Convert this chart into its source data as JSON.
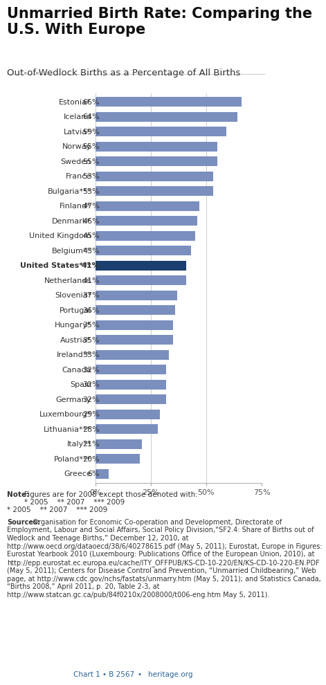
{
  "title": "Unmarried Birth Rate: Comparing the\nU.S. With Europe",
  "subtitle": "Out-of-Wedlock Births as a Percentage of All Births",
  "categories": [
    "Estonia*",
    "Iceland",
    "Latvia*",
    "Norway",
    "Sweden",
    "France",
    "Bulgaria***",
    "Finland*",
    "Denmark*",
    "United Kingdom",
    "Belgium**",
    "United States***",
    "Netherlands",
    "Slovenia*",
    "Portugal",
    "Hungary*",
    "Austria*",
    "Ireland**",
    "Canada",
    "Spain",
    "Germany",
    "Luxembourg*",
    "Lithuania***",
    "Italy**",
    "Poland***",
    "Greece"
  ],
  "values": [
    66,
    64,
    59,
    55,
    55,
    53,
    53,
    47,
    46,
    45,
    43,
    41,
    41,
    37,
    36,
    35,
    35,
    33,
    32,
    32,
    32,
    29,
    28,
    21,
    20,
    6
  ],
  "bar_color_default": "#7b8fbe",
  "bar_color_us": "#1b3f6e",
  "us_index": 11,
  "xlim": [
    0,
    75
  ],
  "xticks": [
    0,
    25,
    50,
    75
  ],
  "xticklabels": [
    "0%",
    "25%",
    "50%",
    "75%"
  ],
  "note_bold": "Note:",
  "note_rest": " Figures are for 2008 except those denoted with:\n* 2005    ** 2007    *** 2009",
  "sources_bold": "Sources:",
  "sources_rest": " Organisation for Economic Co-operation and Development, Directorate of Employment, Labour and Social Affairs, Social Policy Division,“SF2.4: Share of Births out of Wedlock and Teenage Births,” December 12, 2010, at http://www.oecd.org/dataoecd/38/6/40278615.pdf (May 5, 2011); Eurostat, Europe in Figures: Eurostat Yearbook 2010 (Luxembourg: Publications Office of the European Union, 2010), at http://epp.eurostat.ec.europa.eu/cache/ITY_OFFPUB/KS-CD-10-220/EN/KS-CD-10-220-EN.PDF (May 5, 2011); Centers for Disease Control and Prevention, “Unmarried Childbearing,” Web page, at http://www.cdc.gov/nchs/fastats/unmarry.htm (May 5, 2011); and Statistics Canada, “Births 2008,” April 2011, p. 20, Table 2-3, at http://www.statcan.gc.ca/pub/84f0210x/2008000/t006-eng.htm May 5, 2011).",
  "footer_left": "Chart 1 • B 2567",
  "footer_right": "heritage.org",
  "background_color": "#ffffff",
  "grid_color": "#cccccc",
  "title_fontsize": 15,
  "subtitle_fontsize": 9.5,
  "label_fontsize": 8,
  "pct_fontsize": 8,
  "tick_fontsize": 8,
  "note_fontsize": 7.5,
  "sources_fontsize": 7,
  "footer_fontsize": 7.5
}
